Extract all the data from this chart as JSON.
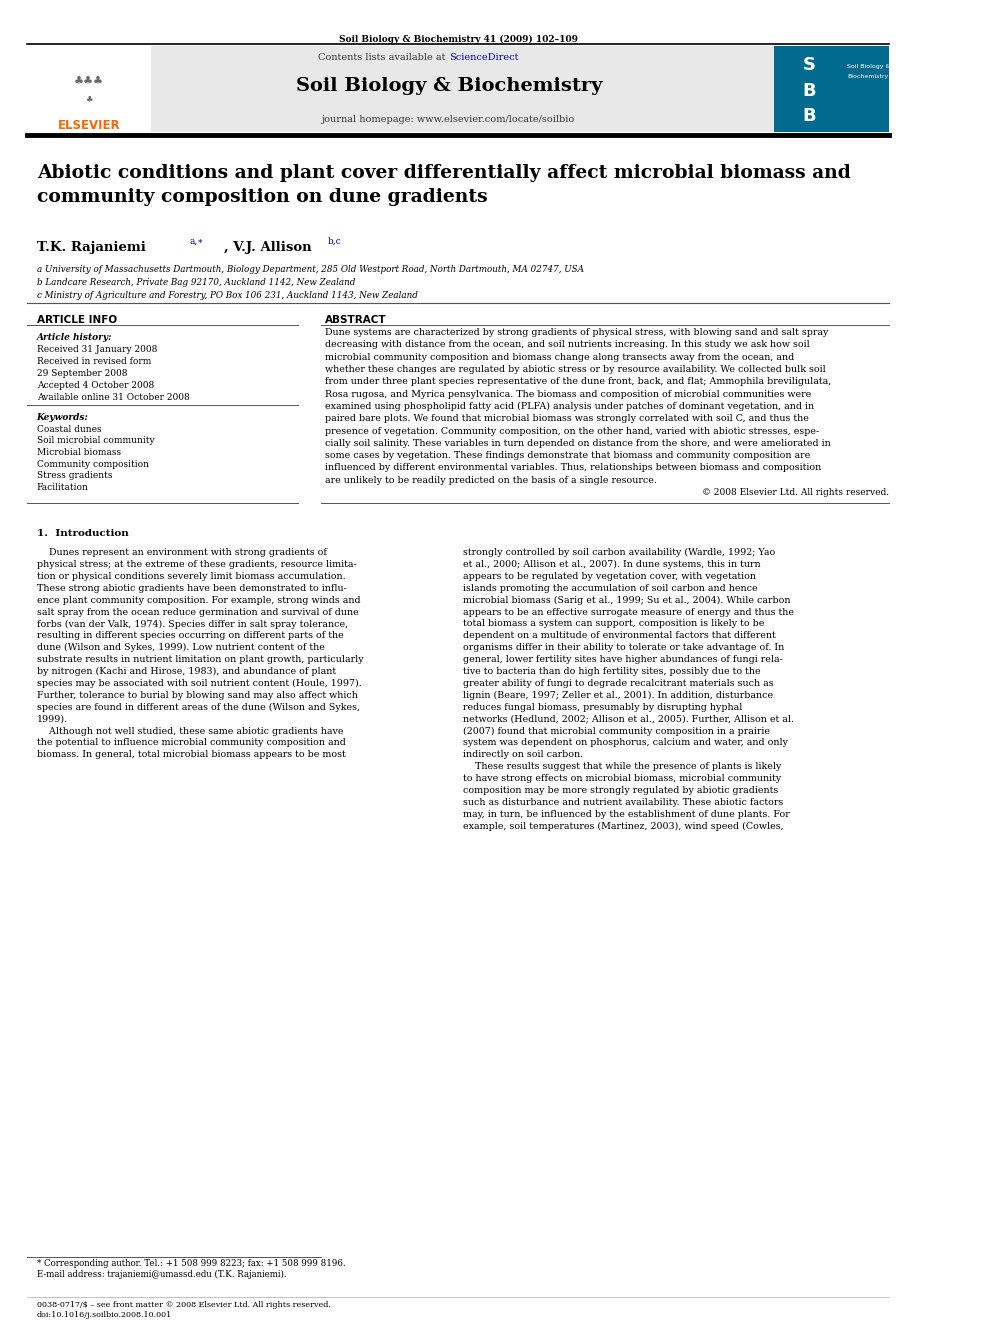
{
  "page_width": 9.92,
  "page_height": 13.23,
  "bg_color": "#ffffff",
  "top_journal_ref": "Soil Biology & Biochemistry 41 (2009) 102–109",
  "header_bg": "#e8e8e8",
  "journal_name": "Soil Biology & Biochemistry",
  "contents_text": "Contents lists available at ScienceDirect",
  "sciencedirect_color": "#0000cc",
  "journal_homepage": "journal homepage: www.elsevier.com/locate/soilbio",
  "elsevier_color": "#ff6600",
  "title": "Abiotic conditions and plant cover differentially affect microbial biomass and\ncommunity composition on dune gradients",
  "authors": "T.K. Rajaniemi",
  "authors2": ", V.J. Allison",
  "author_superscripts": "a,∗",
  "author_superscripts2": "b,c",
  "affil_a": "a University of Massachusetts Dartmouth, Biology Department, 285 Old Westport Road, North Dartmouth, MA 02747, USA",
  "affil_b": "b Landcare Research, Private Bag 92170, Auckland 1142, New Zealand",
  "affil_c": "c Ministry of Agriculture and Forestry, PO Box 106 231, Auckland 1143, New Zealand",
  "article_info_header": "ARTICLE INFO",
  "abstract_header": "ABSTRACT",
  "article_history_label": "Article history:",
  "received1": "Received 31 January 2008",
  "received2": "Received in revised form",
  "received3": "29 September 2008",
  "accepted": "Accepted 4 October 2008",
  "available": "Available online 31 October 2008",
  "keywords_label": "Keywords:",
  "keywords": [
    "Coastal dunes",
    "Soil microbial community",
    "Microbial biomass",
    "Community composition",
    "Stress gradients",
    "Facilitation"
  ],
  "copyright": "© 2008 Elsevier Ltd. All rights reserved.",
  "intro_header": "1.  Introduction",
  "footnote_star": "* Corresponding author. Tel.: +1 508 999 8223; fax: +1 508 999 8196.",
  "footnote_email": "E-mail address: trajaniemi@umassd.edu (T.K. Rajaniemi).",
  "bottom_issn": "0038-0717/$ – see front matter © 2008 Elsevier Ltd. All rights reserved.",
  "bottom_doi": "doi:10.1016/j.soilbio.2008.10.001",
  "link_color": "#0000aa"
}
